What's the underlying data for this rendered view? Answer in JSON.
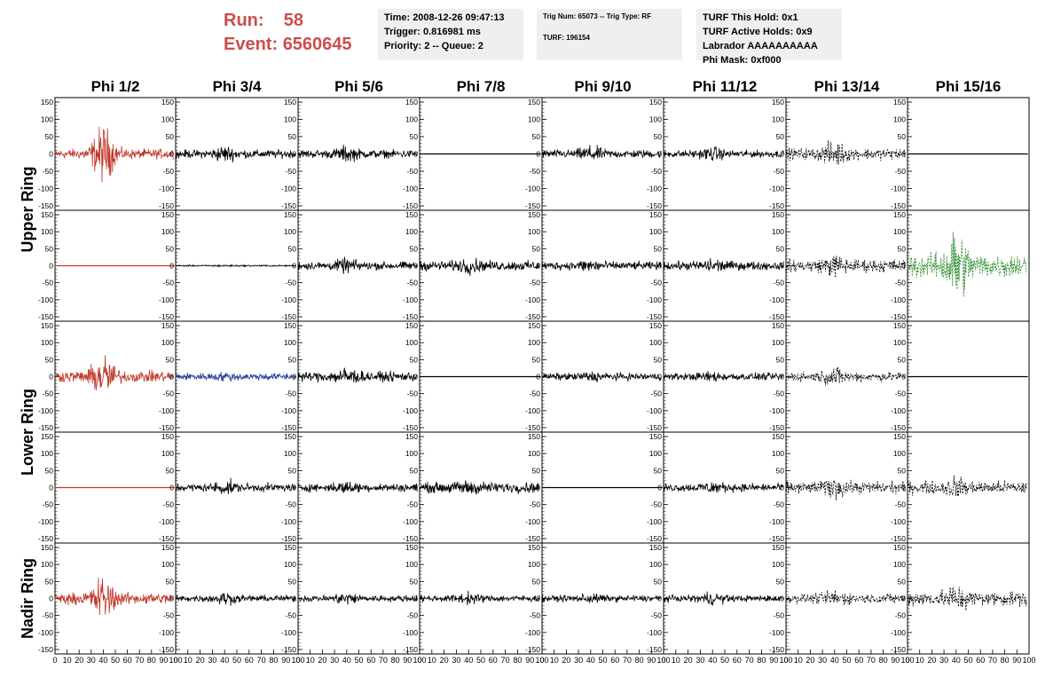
{
  "header": {
    "run_label": "Run:",
    "run_value": "58",
    "event_label": "Event:",
    "event_value": "6560645",
    "box1": [
      "Time: 2008-12-26 09:47:13",
      "Trigger: 0.816981 ms",
      "Priority: 2 -- Queue: 2"
    ],
    "box2": [
      "Trig Num: 65073 -- Trig Type: RF",
      "",
      "TURF: 196154"
    ],
    "box3": [
      "TURF This Hold: 0x1",
      "TURF Active Holds: 0x9",
      "Labrador AAAAAAAAAA",
      "Phi Mask: 0xf000"
    ]
  },
  "colors": {
    "red": "#c0392b",
    "blue": "#1f3c99",
    "green": "#2e8b2e",
    "black": "#000000"
  },
  "chart_data": {
    "type": "line",
    "columns": [
      "Phi 1/2",
      "Phi 3/4",
      "Phi 5/6",
      "Phi 7/8",
      "Phi 9/10",
      "Phi 11/12",
      "Phi 13/14",
      "Phi 15/16"
    ],
    "ring_labels": [
      "Upper Ring",
      "Lower Ring",
      "Nadir Ring"
    ],
    "xlim": [
      0,
      100
    ],
    "ylim": [
      -150,
      150
    ],
    "x_ticks": [
      "0",
      "10",
      "20",
      "30",
      "40",
      "50",
      "60",
      "70",
      "80",
      "90",
      "100"
    ],
    "y_ticks": [
      "-150",
      "-100",
      "-50",
      "0",
      "50",
      "100",
      "150"
    ],
    "rows": [
      [
        {
          "color": "red",
          "amp": 12,
          "burst": 60,
          "dashed": false,
          "flat": false
        },
        {
          "color": "black",
          "amp": 10,
          "burst": 12,
          "dashed": false,
          "flat": false
        },
        {
          "color": "black",
          "amp": 10,
          "burst": 12,
          "dashed": false,
          "flat": false
        },
        {
          "color": "black",
          "amp": 0,
          "burst": 0,
          "dashed": false,
          "flat": true
        },
        {
          "color": "black",
          "amp": 10,
          "burst": 12,
          "dashed": false,
          "flat": false
        },
        {
          "color": "black",
          "amp": 9,
          "burst": 10,
          "dashed": false,
          "flat": false
        },
        {
          "color": "black",
          "amp": 14,
          "burst": 20,
          "dashed": true,
          "flat": false
        },
        {
          "color": "black",
          "amp": 0,
          "burst": 0,
          "dashed": false,
          "flat": true
        }
      ],
      [
        {
          "color": "red",
          "amp": 0,
          "burst": 0,
          "dashed": false,
          "flat": true
        },
        {
          "color": "black",
          "amp": 2,
          "burst": 1,
          "dashed": false,
          "flat": false
        },
        {
          "color": "black",
          "amp": 10,
          "burst": 10,
          "dashed": false,
          "flat": false
        },
        {
          "color": "black",
          "amp": 12,
          "burst": 10,
          "dashed": false,
          "flat": false
        },
        {
          "color": "black",
          "amp": 10,
          "burst": 10,
          "dashed": false,
          "flat": false
        },
        {
          "color": "black",
          "amp": 11,
          "burst": 10,
          "dashed": false,
          "flat": false
        },
        {
          "color": "black",
          "amp": 16,
          "burst": 14,
          "dashed": true,
          "flat": false
        },
        {
          "color": "green",
          "amp": 30,
          "burst": 70,
          "dashed": true,
          "flat": false
        }
      ],
      [
        {
          "color": "red",
          "amp": 14,
          "burst": 45,
          "dashed": false,
          "flat": false
        },
        {
          "color": "blue",
          "amp": 9,
          "burst": 3,
          "dashed": false,
          "flat": false
        },
        {
          "color": "black",
          "amp": 12,
          "burst": 14,
          "dashed": false,
          "flat": false
        },
        {
          "color": "black",
          "amp": 0,
          "burst": 0,
          "dashed": false,
          "flat": true
        },
        {
          "color": "black",
          "amp": 9,
          "burst": 6,
          "dashed": false,
          "flat": false
        },
        {
          "color": "black",
          "amp": 9,
          "burst": 6,
          "dashed": false,
          "flat": false
        },
        {
          "color": "black",
          "amp": 12,
          "burst": 14,
          "dashed": true,
          "flat": false
        },
        {
          "color": "black",
          "amp": 0,
          "burst": 0,
          "dashed": false,
          "flat": true
        }
      ],
      [
        {
          "color": "red",
          "amp": 0,
          "burst": 0,
          "dashed": false,
          "flat": true
        },
        {
          "color": "black",
          "amp": 10,
          "burst": 10,
          "dashed": false,
          "flat": false
        },
        {
          "color": "black",
          "amp": 10,
          "burst": 8,
          "dashed": false,
          "flat": false
        },
        {
          "color": "black",
          "amp": 13,
          "burst": 8,
          "dashed": false,
          "flat": false
        },
        {
          "color": "black",
          "amp": 0,
          "burst": 0,
          "dashed": false,
          "flat": true
        },
        {
          "color": "black",
          "amp": 10,
          "burst": 8,
          "dashed": false,
          "flat": false
        },
        {
          "color": "black",
          "amp": 15,
          "burst": 14,
          "dashed": true,
          "flat": false
        },
        {
          "color": "black",
          "amp": 16,
          "burst": 14,
          "dashed": true,
          "flat": false
        }
      ],
      [
        {
          "color": "red",
          "amp": 14,
          "burst": 45,
          "dashed": false,
          "flat": false
        },
        {
          "color": "black",
          "amp": 8,
          "burst": 10,
          "dashed": false,
          "flat": false
        },
        {
          "color": "black",
          "amp": 8,
          "burst": 10,
          "dashed": false,
          "flat": false
        },
        {
          "color": "black",
          "amp": 8,
          "burst": 8,
          "dashed": false,
          "flat": false
        },
        {
          "color": "black",
          "amp": 8,
          "burst": 6,
          "dashed": false,
          "flat": false
        },
        {
          "color": "black",
          "amp": 8,
          "burst": 10,
          "dashed": false,
          "flat": false
        },
        {
          "color": "black",
          "amp": 12,
          "burst": 12,
          "dashed": true,
          "flat": false
        },
        {
          "color": "black",
          "amp": 18,
          "burst": 20,
          "dashed": true,
          "flat": false
        }
      ]
    ]
  }
}
